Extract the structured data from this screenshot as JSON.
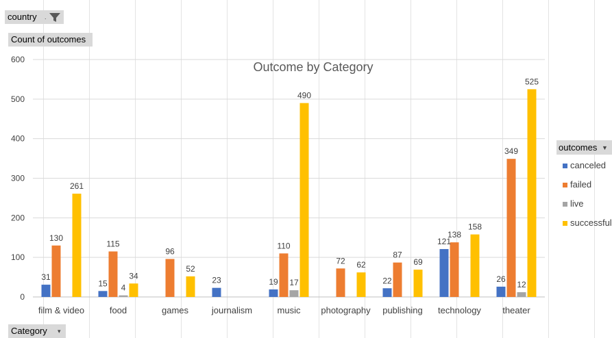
{
  "filters": {
    "country_label": "country",
    "filter_icon": "funnel-filter-icon"
  },
  "values_field": {
    "label": "Count of outcomes"
  },
  "axis_field": {
    "label": "Category",
    "dropdown_icon": "dropdown-arrow-icon"
  },
  "legend": {
    "title": "outcomes",
    "dropdown_icon": "dropdown-arrow-icon",
    "items": [
      {
        "name": "canceled",
        "color": "#4472c4"
      },
      {
        "name": "failed",
        "color": "#ed7d31"
      },
      {
        "name": "live",
        "color": "#a5a5a5"
      },
      {
        "name": "successful",
        "color": "#ffc000"
      }
    ]
  },
  "chart_data": {
    "type": "bar",
    "title": "Outcome by Category",
    "ylabel": "",
    "xlabel": "",
    "ylim": [
      0,
      600
    ],
    "yticks": [
      0,
      100,
      200,
      300,
      400,
      500,
      600
    ],
    "grid": true,
    "legend_position": "right",
    "categories": [
      "film & video",
      "food",
      "games",
      "journalism",
      "music",
      "photography",
      "publishing",
      "technology",
      "theater"
    ],
    "series": [
      {
        "name": "canceled",
        "color": "#4472c4",
        "values": [
          31,
          15,
          null,
          23,
          19,
          null,
          22,
          121,
          26
        ]
      },
      {
        "name": "failed",
        "color": "#ed7d31",
        "values": [
          130,
          115,
          96,
          null,
          110,
          72,
          87,
          138,
          349
        ]
      },
      {
        "name": "live",
        "color": "#a5a5a5",
        "values": [
          null,
          4,
          null,
          null,
          17,
          null,
          null,
          null,
          12
        ]
      },
      {
        "name": "successful",
        "color": "#ffc000",
        "values": [
          261,
          34,
          52,
          null,
          490,
          62,
          69,
          158,
          525
        ]
      }
    ]
  }
}
